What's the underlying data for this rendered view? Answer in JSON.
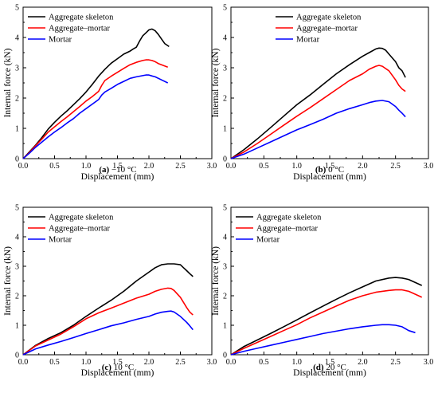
{
  "figure": {
    "colors": {
      "skeleton": "#000000",
      "interface": "#ff0000",
      "mortar": "#0000ff"
    }
  },
  "chart_data": [
    {
      "type": "line",
      "caption_label": "(a)",
      "caption_text": "−10 °C",
      "xlabel": "Displacement (mm)",
      "ylabel": "Internal force (kN)",
      "xlim": [
        0,
        3.0
      ],
      "ylim": [
        0,
        5
      ],
      "xticks": [
        "0.0",
        "0.5",
        "1.0",
        "1.5",
        "2.0",
        "2.5",
        "3.0"
      ],
      "yticks": [
        "0",
        "1",
        "2",
        "3",
        "4",
        "5"
      ],
      "legend": "top-left",
      "series": [
        {
          "name": "Aggregate skeleton",
          "color": "#000000",
          "x": [
            0,
            0.1,
            0.2,
            0.3,
            0.4,
            0.5,
            0.6,
            0.7,
            0.8,
            0.9,
            1.0,
            1.1,
            1.2,
            1.3,
            1.4,
            1.5,
            1.6,
            1.7,
            1.75,
            1.8,
            1.85,
            1.9,
            1.95,
            2.0,
            2.05,
            2.1,
            2.15,
            2.2,
            2.25,
            2.32
          ],
          "y": [
            0,
            0.22,
            0.45,
            0.7,
            0.98,
            1.2,
            1.4,
            1.58,
            1.78,
            1.98,
            2.2,
            2.45,
            2.72,
            2.95,
            3.15,
            3.3,
            3.45,
            3.55,
            3.62,
            3.68,
            3.88,
            4.05,
            4.15,
            4.25,
            4.28,
            4.22,
            4.1,
            3.95,
            3.8,
            3.7
          ]
        },
        {
          "name": "Aggregate–mortar",
          "color": "#ff0000",
          "x": [
            0,
            0.1,
            0.2,
            0.3,
            0.4,
            0.5,
            0.6,
            0.7,
            0.8,
            0.9,
            1.0,
            1.1,
            1.2,
            1.25,
            1.3,
            1.4,
            1.5,
            1.6,
            1.7,
            1.8,
            1.9,
            1.95,
            2.0,
            2.05,
            2.1,
            2.15,
            2.2,
            2.3
          ],
          "y": [
            0,
            0.2,
            0.43,
            0.65,
            0.88,
            1.05,
            1.22,
            1.38,
            1.55,
            1.72,
            1.9,
            2.05,
            2.22,
            2.42,
            2.58,
            2.72,
            2.85,
            2.98,
            3.1,
            3.18,
            3.24,
            3.26,
            3.26,
            3.24,
            3.2,
            3.14,
            3.1,
            3.02
          ]
        },
        {
          "name": "Mortar",
          "color": "#0000ff",
          "x": [
            0,
            0.1,
            0.2,
            0.3,
            0.4,
            0.5,
            0.6,
            0.7,
            0.8,
            0.9,
            1.0,
            1.1,
            1.2,
            1.25,
            1.3,
            1.4,
            1.5,
            1.6,
            1.7,
            1.8,
            1.9,
            1.95,
            2.0,
            2.05,
            2.1,
            2.2,
            2.3
          ],
          "y": [
            0,
            0.18,
            0.38,
            0.55,
            0.72,
            0.88,
            1.02,
            1.18,
            1.32,
            1.5,
            1.65,
            1.8,
            1.95,
            2.1,
            2.2,
            2.32,
            2.45,
            2.55,
            2.65,
            2.7,
            2.74,
            2.76,
            2.76,
            2.73,
            2.7,
            2.6,
            2.5
          ]
        }
      ]
    },
    {
      "type": "line",
      "caption_label": "(b)",
      "caption_text": "0 °C",
      "xlabel": "Displacement (mm)",
      "ylabel": "Internal force (kN)",
      "xlim": [
        0,
        3.0
      ],
      "ylim": [
        0,
        5
      ],
      "xticks": [
        "0.0",
        "0.5",
        "1.0",
        "1.5",
        "2.0",
        "2.5",
        "3.0"
      ],
      "yticks": [
        "0",
        "1",
        "2",
        "3",
        "4",
        "5"
      ],
      "legend": "top-right",
      "series": [
        {
          "name": "Aggregate skeleton",
          "color": "#000000",
          "x": [
            0,
            0.2,
            0.4,
            0.6,
            0.8,
            1.0,
            1.2,
            1.4,
            1.6,
            1.8,
            2.0,
            2.1,
            2.2,
            2.25,
            2.3,
            2.35,
            2.4,
            2.5,
            2.55,
            2.6,
            2.65
          ],
          "y": [
            0,
            0.3,
            0.65,
            1.02,
            1.4,
            1.78,
            2.1,
            2.45,
            2.8,
            3.1,
            3.38,
            3.5,
            3.62,
            3.65,
            3.64,
            3.58,
            3.45,
            3.2,
            3.0,
            2.9,
            2.68
          ]
        },
        {
          "name": "Aggregate–mortar",
          "color": "#ff0000",
          "x": [
            0,
            0.2,
            0.4,
            0.6,
            0.8,
            1.0,
            1.2,
            1.4,
            1.6,
            1.8,
            2.0,
            2.1,
            2.2,
            2.25,
            2.3,
            2.4,
            2.5,
            2.55,
            2.6,
            2.65
          ],
          "y": [
            0,
            0.22,
            0.5,
            0.8,
            1.1,
            1.4,
            1.68,
            1.98,
            2.28,
            2.58,
            2.8,
            2.95,
            3.05,
            3.08,
            3.05,
            2.9,
            2.6,
            2.42,
            2.3,
            2.22
          ]
        },
        {
          "name": "Mortar",
          "color": "#0000ff",
          "x": [
            0,
            0.2,
            0.4,
            0.6,
            0.8,
            1.0,
            1.2,
            1.4,
            1.6,
            1.8,
            2.0,
            2.1,
            2.2,
            2.3,
            2.4,
            2.5,
            2.55,
            2.6,
            2.65
          ],
          "y": [
            0,
            0.15,
            0.35,
            0.55,
            0.75,
            0.95,
            1.12,
            1.3,
            1.5,
            1.65,
            1.78,
            1.85,
            1.9,
            1.92,
            1.88,
            1.72,
            1.6,
            1.5,
            1.38
          ]
        }
      ]
    },
    {
      "type": "line",
      "caption_label": "(c)",
      "caption_text": "10 °C",
      "xlabel": "Displacement (mm)",
      "ylabel": "Internal force (kN)",
      "xlim": [
        0,
        3.0
      ],
      "ylim": [
        0,
        5
      ],
      "xticks": [
        "0.0",
        "0.5",
        "1.0",
        "1.5",
        "2.0",
        "2.5",
        "3.0"
      ],
      "yticks": [
        "0",
        "1",
        "2",
        "3",
        "4",
        "5"
      ],
      "legend": "top-left",
      "series": [
        {
          "name": "Aggregate skeleton",
          "color": "#000000",
          "x": [
            0,
            0.2,
            0.4,
            0.6,
            0.8,
            1.0,
            1.2,
            1.4,
            1.6,
            1.8,
            2.0,
            2.1,
            2.2,
            2.3,
            2.4,
            2.5,
            2.55,
            2.6,
            2.65,
            2.7
          ],
          "y": [
            0,
            0.32,
            0.55,
            0.75,
            1.0,
            1.3,
            1.58,
            1.85,
            2.15,
            2.5,
            2.8,
            2.95,
            3.05,
            3.08,
            3.08,
            3.05,
            2.95,
            2.85,
            2.75,
            2.65
          ]
        },
        {
          "name": "Aggregate–mortar",
          "color": "#ff0000",
          "x": [
            0,
            0.2,
            0.4,
            0.6,
            0.8,
            1.0,
            1.2,
            1.4,
            1.6,
            1.8,
            2.0,
            2.1,
            2.2,
            2.3,
            2.35,
            2.4,
            2.5,
            2.6,
            2.65,
            2.7
          ],
          "y": [
            0,
            0.3,
            0.5,
            0.7,
            0.95,
            1.22,
            1.42,
            1.58,
            1.75,
            1.92,
            2.05,
            2.15,
            2.22,
            2.26,
            2.25,
            2.18,
            1.95,
            1.6,
            1.45,
            1.35
          ]
        },
        {
          "name": "Mortar",
          "color": "#0000ff",
          "x": [
            0,
            0.2,
            0.4,
            0.6,
            0.8,
            1.0,
            1.2,
            1.4,
            1.6,
            1.8,
            2.0,
            2.1,
            2.2,
            2.3,
            2.35,
            2.4,
            2.5,
            2.6,
            2.65,
            2.7
          ],
          "y": [
            0,
            0.2,
            0.33,
            0.45,
            0.58,
            0.72,
            0.85,
            0.98,
            1.08,
            1.2,
            1.3,
            1.38,
            1.44,
            1.47,
            1.48,
            1.45,
            1.3,
            1.1,
            0.98,
            0.85
          ]
        }
      ]
    },
    {
      "type": "line",
      "caption_label": "(d)",
      "caption_text": "20 °C",
      "xlabel": "Displacement (mm)",
      "ylabel": "Internal force (kN)",
      "xlim": [
        0,
        3.0
      ],
      "ylim": [
        0,
        5
      ],
      "xticks": [
        "0.0",
        "0.5",
        "1.0",
        "1.5",
        "2.0",
        "2.5",
        "3.0"
      ],
      "yticks": [
        "0",
        "1",
        "2",
        "3",
        "4",
        "5"
      ],
      "legend": "top-left",
      "series": [
        {
          "name": "Aggregate skeleton",
          "color": "#000000",
          "x": [
            0,
            0.2,
            0.4,
            0.6,
            0.8,
            1.0,
            1.2,
            1.4,
            1.6,
            1.8,
            2.0,
            2.2,
            2.4,
            2.5,
            2.6,
            2.7,
            2.8,
            2.9
          ],
          "y": [
            0,
            0.28,
            0.5,
            0.72,
            0.95,
            1.18,
            1.42,
            1.65,
            1.88,
            2.1,
            2.3,
            2.5,
            2.6,
            2.62,
            2.6,
            2.55,
            2.45,
            2.35
          ]
        },
        {
          "name": "Aggregate–mortar",
          "color": "#ff0000",
          "x": [
            0,
            0.2,
            0.4,
            0.6,
            0.8,
            1.0,
            1.2,
            1.4,
            1.6,
            1.8,
            2.0,
            2.2,
            2.4,
            2.5,
            2.6,
            2.7,
            2.8,
            2.9
          ],
          "y": [
            0,
            0.22,
            0.42,
            0.62,
            0.82,
            1.02,
            1.25,
            1.45,
            1.65,
            1.85,
            2.0,
            2.12,
            2.18,
            2.2,
            2.2,
            2.15,
            2.05,
            1.95
          ]
        },
        {
          "name": "Mortar",
          "color": "#0000ff",
          "x": [
            0,
            0.2,
            0.4,
            0.6,
            0.8,
            1.0,
            1.2,
            1.4,
            1.6,
            1.8,
            2.0,
            2.2,
            2.3,
            2.4,
            2.5,
            2.6,
            2.7,
            2.8
          ],
          "y": [
            0,
            0.12,
            0.22,
            0.32,
            0.42,
            0.52,
            0.62,
            0.72,
            0.8,
            0.88,
            0.95,
            1.0,
            1.02,
            1.02,
            1.0,
            0.95,
            0.82,
            0.75
          ]
        }
      ]
    }
  ]
}
